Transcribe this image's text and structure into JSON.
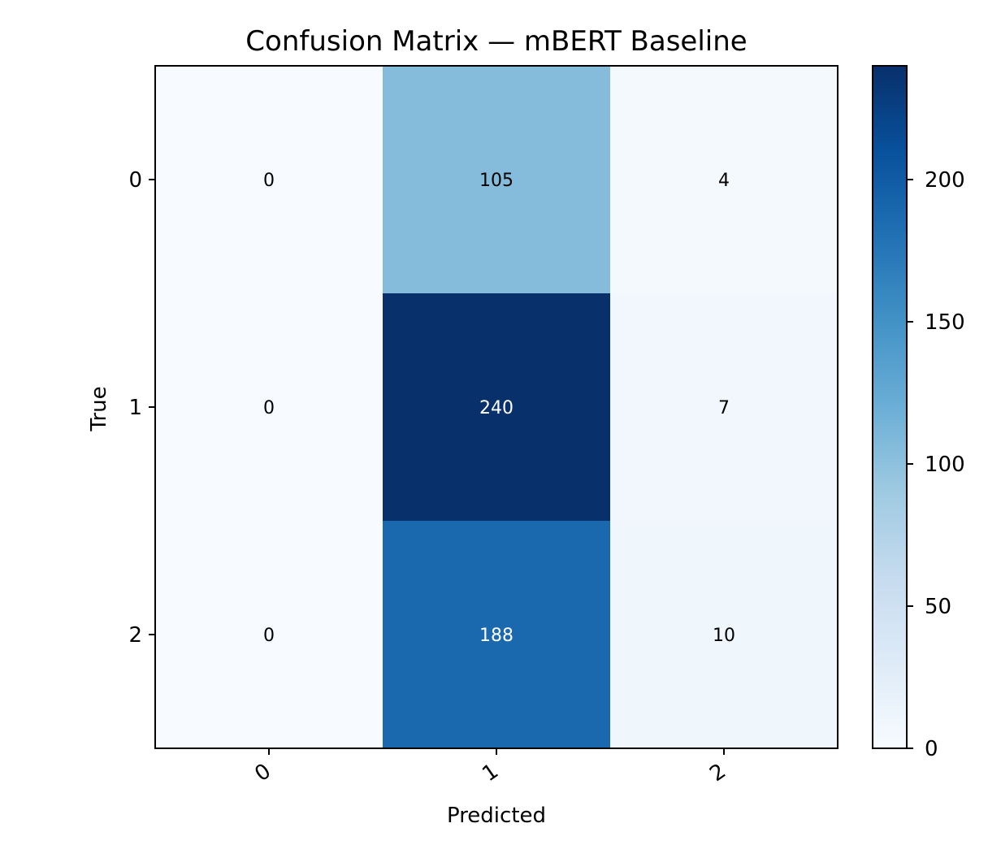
{
  "chart_data": {
    "type": "heatmap",
    "title": "Confusion Matrix — mBERT Baseline",
    "xlabel": "Predicted",
    "ylabel": "True",
    "x_categories": [
      "0",
      "1",
      "2"
    ],
    "y_categories": [
      "0",
      "1",
      "2"
    ],
    "matrix": [
      [
        0,
        105,
        4
      ],
      [
        0,
        240,
        7
      ],
      [
        0,
        188,
        10
      ]
    ],
    "colormap": "Blues",
    "color_range": [
      0,
      240
    ],
    "colorbar_ticks": [
      0,
      50,
      100,
      150,
      200
    ],
    "colorbar_tick_labels": [
      "0",
      "50",
      "100",
      "150",
      "200"
    ],
    "x_tick_rotation_deg": 35,
    "grid": false,
    "colors": {
      "low": "#f7fbff",
      "high": "#08306b",
      "text_dark": "#000000",
      "text_light": "#ffffff"
    }
  }
}
